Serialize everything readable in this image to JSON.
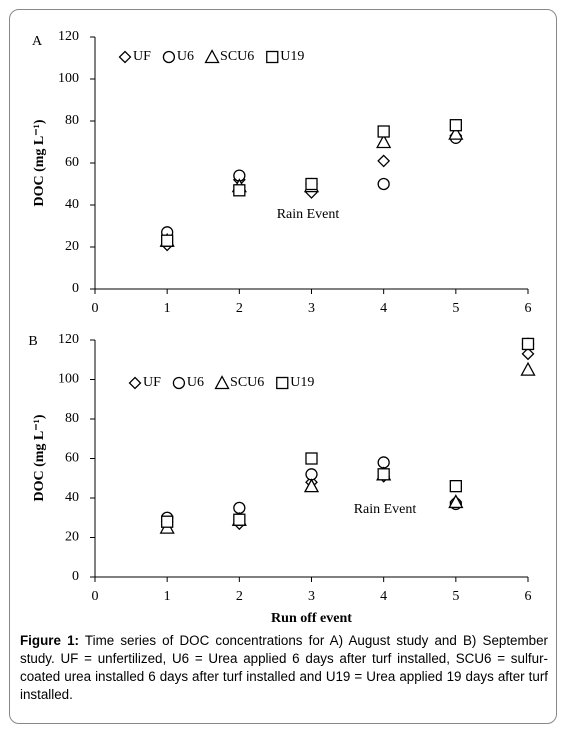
{
  "chart_data": [
    {
      "type": "scatter",
      "panel_label": "A",
      "ylabel": "DOC (mg L⁻¹)",
      "annotation": "Rain Event",
      "x": [
        1,
        2,
        3,
        4,
        5
      ],
      "series": [
        {
          "name": "UF",
          "marker": "diamond",
          "color": "#000000",
          "values": [
            21,
            52,
            46,
            61,
            73
          ]
        },
        {
          "name": "U6",
          "marker": "circle",
          "color": "#000000",
          "values": [
            27,
            54,
            50,
            50,
            72
          ]
        },
        {
          "name": "SCU6",
          "marker": "triangle",
          "color": "#000000",
          "values": [
            23,
            49,
            49,
            70,
            74
          ]
        },
        {
          "name": "U19",
          "marker": "square",
          "color": "#000000",
          "values": [
            23,
            47,
            50,
            75,
            78
          ]
        }
      ],
      "xlim": [
        0,
        6
      ],
      "xticks": [
        0,
        1,
        2,
        3,
        4,
        5,
        6
      ],
      "ylim": [
        0,
        120
      ],
      "yticks": [
        0,
        20,
        40,
        60,
        80,
        100,
        120
      ]
    },
    {
      "type": "scatter",
      "panel_label": "B",
      "ylabel": "DOC (mg L⁻¹)",
      "xlabel": "Run off event",
      "annotation": "Rain Event",
      "x": [
        1,
        2,
        3,
        4,
        5,
        6
      ],
      "series": [
        {
          "name": "UF",
          "marker": "diamond",
          "color": "#000000",
          "values": [
            28,
            27,
            48,
            51,
            38,
            113
          ]
        },
        {
          "name": "U6",
          "marker": "circle",
          "color": "#000000",
          "values": [
            30,
            35,
            52,
            58,
            37,
            118
          ]
        },
        {
          "name": "SCU6",
          "marker": "triangle",
          "color": "#000000",
          "values": [
            25,
            29,
            46,
            52,
            38,
            105
          ]
        },
        {
          "name": "U19",
          "marker": "square",
          "color": "#000000",
          "values": [
            28,
            29,
            60,
            52,
            46,
            118
          ]
        }
      ],
      "xlim": [
        0,
        6
      ],
      "xticks": [
        0,
        1,
        2,
        3,
        4,
        5,
        6
      ],
      "ylim": [
        0,
        120
      ],
      "yticks": [
        0,
        20,
        40,
        60,
        80,
        100,
        120
      ]
    }
  ],
  "caption": {
    "label": "Figure 1:",
    "text": "Time series of DOC concentrations for A) August study and B) September study. UF = unfertilized, U6 = Urea applied 6 days after turf installed, SCU6 = sulfur-coated urea installed 6 days after turf installed and U19 = Urea applied 19 days after turf installed."
  }
}
